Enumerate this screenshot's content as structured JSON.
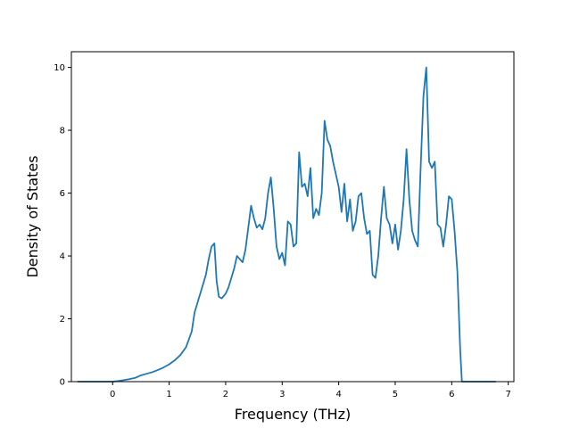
{
  "chart_data": {
    "type": "line",
    "title": "",
    "xlabel": "Frequency (THz)",
    "ylabel": "Density of States",
    "xlim": [
      -0.73,
      7.1
    ],
    "ylim": [
      0,
      10.5
    ],
    "xticks": [
      0,
      1,
      2,
      3,
      4,
      5,
      6,
      7
    ],
    "yticks": [
      0,
      2,
      4,
      6,
      8,
      10
    ],
    "grid": false,
    "line_color": "#1f77b4",
    "series": [
      {
        "x": [
          -0.62,
          -0.2,
          0,
          0.1,
          0.2,
          0.3,
          0.4,
          0.5,
          0.6,
          0.7,
          0.8,
          0.9,
          1.0,
          1.1,
          1.2,
          1.3,
          1.4,
          1.45,
          1.5,
          1.55,
          1.6,
          1.65,
          1.7,
          1.75,
          1.8,
          1.84,
          1.88,
          1.93,
          2.0,
          2.05,
          2.1,
          2.15,
          2.2,
          2.3,
          2.35,
          2.4,
          2.45,
          2.5,
          2.55,
          2.6,
          2.65,
          2.7,
          2.75,
          2.8,
          2.85,
          2.9,
          2.95,
          3.0,
          3.05,
          3.1,
          3.15,
          3.2,
          3.25,
          3.3,
          3.35,
          3.4,
          3.45,
          3.5,
          3.55,
          3.6,
          3.65,
          3.7,
          3.75,
          3.8,
          3.85,
          3.9,
          3.95,
          4.0,
          4.05,
          4.1,
          4.15,
          4.2,
          4.25,
          4.3,
          4.35,
          4.4,
          4.45,
          4.5,
          4.55,
          4.6,
          4.65,
          4.7,
          4.75,
          4.8,
          4.85,
          4.9,
          4.95,
          5.0,
          5.05,
          5.1,
          5.15,
          5.2,
          5.25,
          5.3,
          5.35,
          5.4,
          5.45,
          5.5,
          5.55,
          5.6,
          5.65,
          5.7,
          5.75,
          5.8,
          5.85,
          5.9,
          5.95,
          6.0,
          6.05,
          6.1,
          6.15,
          6.18,
          6.3,
          6.78
        ],
        "y": [
          0,
          0,
          0,
          0.02,
          0.05,
          0.08,
          0.12,
          0.2,
          0.25,
          0.3,
          0.37,
          0.45,
          0.55,
          0.68,
          0.85,
          1.1,
          1.6,
          2.2,
          2.5,
          2.8,
          3.1,
          3.4,
          3.9,
          4.3,
          4.4,
          3.2,
          2.7,
          2.65,
          2.8,
          3.0,
          3.3,
          3.6,
          4.0,
          3.8,
          4.2,
          4.9,
          5.6,
          5.2,
          4.9,
          5.0,
          4.85,
          5.2,
          6.0,
          6.5,
          5.5,
          4.3,
          3.9,
          4.1,
          3.7,
          5.1,
          5.0,
          4.3,
          4.4,
          7.3,
          6.2,
          6.3,
          5.9,
          6.8,
          5.2,
          5.5,
          5.3,
          6.0,
          8.3,
          7.7,
          7.5,
          7.0,
          6.6,
          6.2,
          5.4,
          6.3,
          5.1,
          5.8,
          4.8,
          5.1,
          5.9,
          6.0,
          5.2,
          4.7,
          4.8,
          3.4,
          3.3,
          4.0,
          5.2,
          6.2,
          5.2,
          5.0,
          4.4,
          5.0,
          4.2,
          4.8,
          5.8,
          7.4,
          5.8,
          4.8,
          4.5,
          4.3,
          6.8,
          9.1,
          10.0,
          7.0,
          6.8,
          7.0,
          5.0,
          4.9,
          4.3,
          5.0,
          5.9,
          5.8,
          4.8,
          3.5,
          1.0,
          0,
          0,
          0
        ]
      }
    ]
  }
}
